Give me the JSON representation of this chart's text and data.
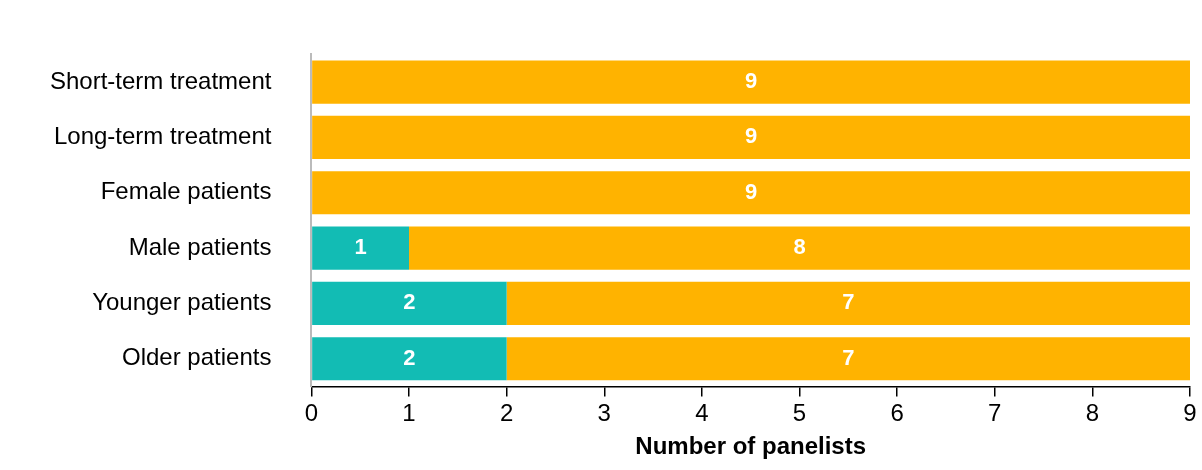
{
  "chart_data": {
    "type": "bar",
    "orientation": "horizontal",
    "stacked": true,
    "data_labels": true,
    "categories": [
      "Short-term treatment",
      "Long-term treatment",
      "Female patients",
      "Male patients",
      "Younger patients",
      "Older patients"
    ],
    "series": [
      {
        "color": "#12bcb4",
        "values": [
          null,
          null,
          null,
          1,
          2,
          2
        ]
      },
      {
        "color": "#ffb300",
        "values": [
          9,
          9,
          9,
          8,
          7,
          7
        ]
      }
    ],
    "xlabel": "Number of panelists",
    "xlim": [
      0,
      9
    ],
    "xticks": [
      0,
      1,
      2,
      3,
      4,
      5,
      6,
      7,
      8,
      9
    ]
  }
}
